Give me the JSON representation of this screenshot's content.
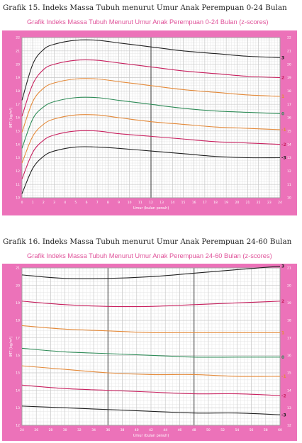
{
  "chart_data": [
    {
      "type": "line",
      "caption": "Grafik 15. Indeks Massa Tubuh menurut Umur Anak Perempuan 0-24 Bulan",
      "title": "Grafik Indeks Massa Tubuh Menurut Umur Anak Perempuan  0-24 Bulan (z-scores)",
      "xlabel": "Umur (bulan penuh)",
      "ylabel": "IMT (kg/m²)",
      "xlim": [
        0,
        24
      ],
      "ylim": [
        10,
        22
      ],
      "x_ticks": [
        0,
        1,
        2,
        3,
        4,
        5,
        6,
        7,
        8,
        9,
        10,
        11,
        12,
        13,
        14,
        15,
        16,
        17,
        18,
        19,
        20,
        21,
        22,
        23,
        24
      ],
      "y_ticks": [
        10,
        11,
        12,
        13,
        14,
        15,
        16,
        17,
        18,
        19,
        20,
        21,
        22
      ],
      "grid": true,
      "colors": {
        "background": "#ec72b9",
        "plot": "#ffffff",
        "grid": "#e4e4e4",
        "neg3": "#222222",
        "neg2": "#c8215f",
        "neg1": "#e48a3a",
        "zero": "#2e8b57",
        "pos1": "#e48a3a",
        "pos2": "#c8215f",
        "pos3": "#222222"
      },
      "x": [
        0,
        1,
        2,
        3,
        5,
        7,
        9,
        12,
        15,
        18,
        21,
        24
      ],
      "series": [
        {
          "name": "3",
          "color_key": "pos3",
          "values": [
            17.3,
            20.0,
            21.1,
            21.5,
            21.8,
            21.8,
            21.6,
            21.3,
            21.0,
            20.8,
            20.6,
            20.5
          ]
        },
        {
          "name": "2",
          "color_key": "pos2",
          "values": [
            16.1,
            18.5,
            19.6,
            20.0,
            20.3,
            20.3,
            20.1,
            19.8,
            19.5,
            19.3,
            19.1,
            19.0
          ]
        },
        {
          "name": "1",
          "color_key": "pos1",
          "values": [
            14.9,
            17.2,
            18.2,
            18.6,
            18.9,
            18.9,
            18.7,
            18.4,
            18.1,
            17.9,
            17.7,
            17.6
          ]
        },
        {
          "name": "0",
          "color_key": "zero",
          "values": [
            13.7,
            15.9,
            16.8,
            17.2,
            17.5,
            17.5,
            17.3,
            17.0,
            16.7,
            16.5,
            16.4,
            16.3
          ]
        },
        {
          "name": "-1",
          "color_key": "neg1",
          "values": [
            12.6,
            14.6,
            15.5,
            15.9,
            16.2,
            16.2,
            16.0,
            15.7,
            15.5,
            15.3,
            15.2,
            15.1
          ]
        },
        {
          "name": "-2",
          "color_key": "neg2",
          "values": [
            11.4,
            13.4,
            14.3,
            14.7,
            15.0,
            15.0,
            14.8,
            14.6,
            14.4,
            14.2,
            14.1,
            14.0
          ]
        },
        {
          "name": "-3",
          "color_key": "neg3",
          "values": [
            10.3,
            12.2,
            13.1,
            13.5,
            13.8,
            13.8,
            13.7,
            13.5,
            13.3,
            13.1,
            13.0,
            13.0
          ]
        }
      ]
    },
    {
      "type": "line",
      "caption": "Grafik 16. Indeks Massa Tubuh menurut Umur Anak Perempuan 24-60 Bulan",
      "title": "Grafik Indeks Massa Tubuh Menurut Umur Anak Perempuan  24-60 Bulan (z-scores)",
      "xlabel": "Umur (bulan penuh)",
      "ylabel": "IMT (kg/m²)",
      "xlim": [
        24,
        60
      ],
      "ylim": [
        12,
        21
      ],
      "x_ticks": [
        24,
        26,
        28,
        30,
        32,
        34,
        36,
        38,
        40,
        42,
        44,
        46,
        48,
        50,
        52,
        54,
        56,
        58,
        60
      ],
      "y_ticks": [
        12,
        13,
        14,
        15,
        16,
        17,
        18,
        19,
        20,
        21
      ],
      "grid": true,
      "colors": {
        "background": "#ec72b9",
        "plot": "#ffffff",
        "grid": "#e4e4e4",
        "neg3": "#222222",
        "neg2": "#c8215f",
        "neg1": "#e48a3a",
        "zero": "#2e8b57",
        "pos1": "#e48a3a",
        "pos2": "#c8215f",
        "pos3": "#222222"
      },
      "x": [
        24,
        30,
        36,
        42,
        48,
        54,
        60
      ],
      "series": [
        {
          "name": "3",
          "color_key": "pos3",
          "values": [
            20.6,
            20.4,
            20.4,
            20.5,
            20.7,
            20.9,
            21.1
          ]
        },
        {
          "name": "2",
          "color_key": "pos2",
          "values": [
            19.1,
            18.9,
            18.8,
            18.8,
            18.9,
            19.0,
            19.1
          ]
        },
        {
          "name": "1",
          "color_key": "pos1",
          "values": [
            17.7,
            17.5,
            17.4,
            17.3,
            17.3,
            17.3,
            17.3
          ]
        },
        {
          "name": "0",
          "color_key": "zero",
          "values": [
            16.4,
            16.2,
            16.1,
            16.0,
            15.9,
            15.9,
            15.9
          ]
        },
        {
          "name": "-1",
          "color_key": "neg1",
          "values": [
            15.4,
            15.2,
            15.0,
            14.9,
            14.9,
            14.8,
            14.8
          ]
        },
        {
          "name": "-2",
          "color_key": "neg2",
          "values": [
            14.3,
            14.1,
            14.0,
            13.9,
            13.8,
            13.8,
            13.7
          ]
        },
        {
          "name": "-3",
          "color_key": "neg3",
          "values": [
            13.1,
            13.0,
            12.9,
            12.8,
            12.7,
            12.7,
            12.6
          ]
        }
      ]
    }
  ]
}
